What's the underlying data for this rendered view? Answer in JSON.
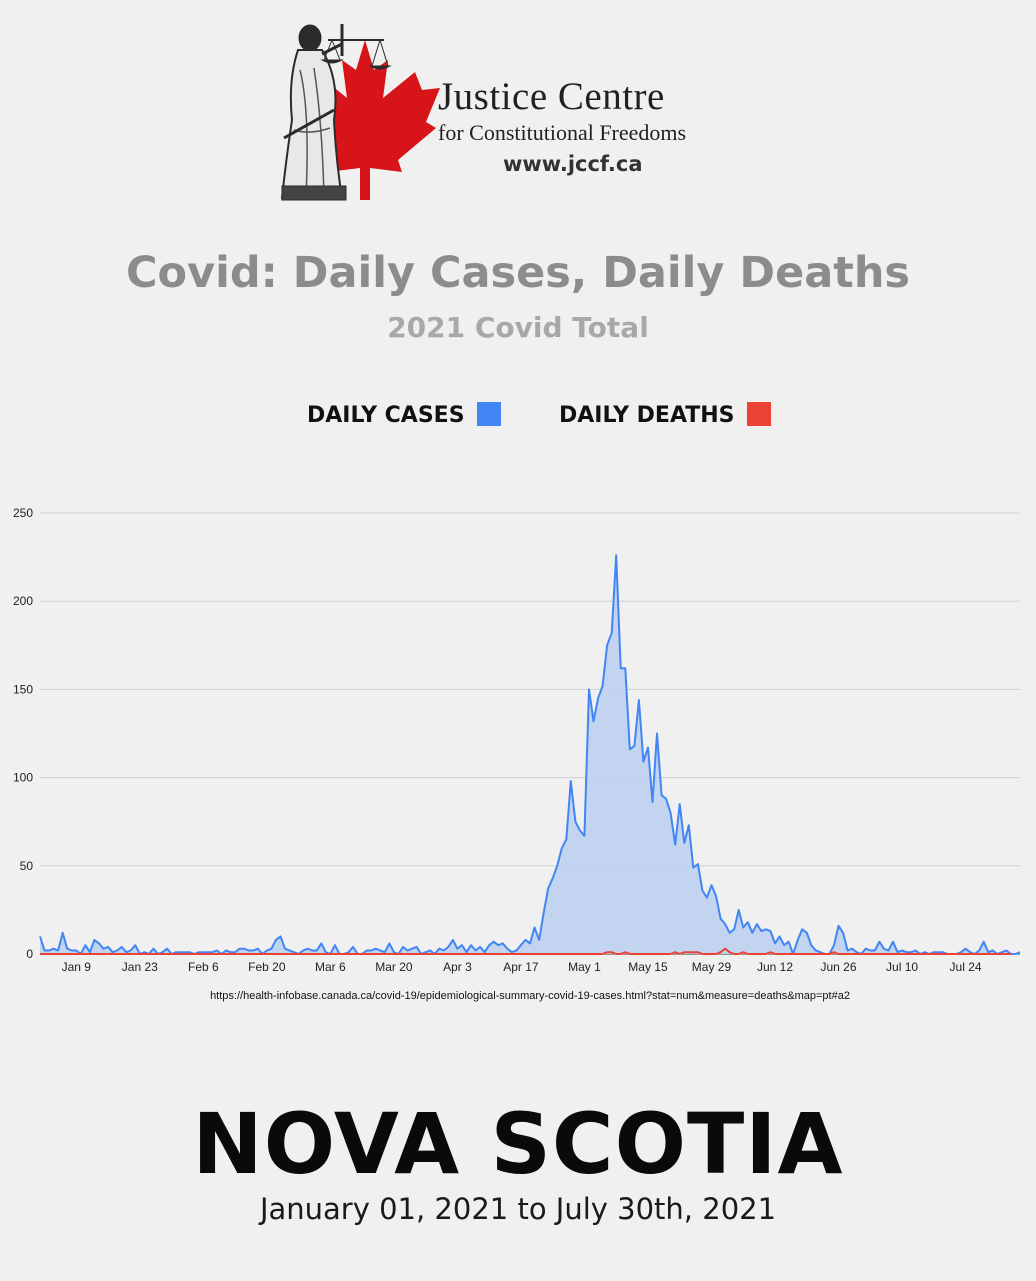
{
  "logo": {
    "name": "Justice Centre",
    "subtitle": "for Constitutional Freedoms",
    "url": "www.jccf.ca",
    "leaf_color": "#d7141a"
  },
  "title": "Covid: Daily Cases, Daily Deaths",
  "subtitle": "2021 Covid Total",
  "legend": {
    "cases_label": "DAILY CASES",
    "deaths_label": "DAILY DEATHS",
    "placement": "top-center"
  },
  "source": "https://health-infobase.canada.ca/covid-19/epidemiological-summary-covid-19-cases.html?stat=num&measure=deaths&map=pt#a2",
  "region": "NOVA SCOTIA",
  "date_range": "January 01, 2021 to July 30th, 2021",
  "chart_data": {
    "type": "area",
    "ylim": [
      0,
      250
    ],
    "yticks": [
      0,
      50,
      100,
      150,
      200,
      250
    ],
    "grid": true,
    "xtick_labels": [
      "Jan 9",
      "Jan 23",
      "Feb 6",
      "Feb 20",
      "Mar 6",
      "Mar 20",
      "Apr 3",
      "Apr 17",
      "May 1",
      "May 15",
      "May 29",
      "Jun 12",
      "Jun 26",
      "Jul 10",
      "Jul 24"
    ],
    "xtick_days": [
      8,
      22,
      36,
      50,
      64,
      78,
      92,
      106,
      120,
      134,
      148,
      162,
      176,
      190,
      204
    ],
    "series": [
      {
        "name": "DAILY CASES",
        "color": "#4285f4",
        "fill": "#bdd0ef",
        "values": [
          10,
          2,
          2,
          3,
          2,
          12,
          3,
          2,
          2,
          0,
          5,
          1,
          8,
          6,
          3,
          4,
          1,
          2,
          4,
          1,
          2,
          5,
          0,
          1,
          0,
          3,
          0,
          1,
          3,
          0,
          1,
          1,
          1,
          1,
          0,
          1,
          1,
          1,
          1,
          2,
          0,
          2,
          1,
          1,
          3,
          3,
          2,
          2,
          3,
          0,
          2,
          3,
          8,
          10,
          3,
          2,
          1,
          0,
          2,
          3,
          2,
          2,
          6,
          1,
          0,
          5,
          0,
          0,
          1,
          4,
          0,
          0,
          2,
          2,
          3,
          2,
          1,
          6,
          1,
          0,
          4,
          2,
          3,
          4,
          0,
          1,
          2,
          0,
          3,
          2,
          4,
          8,
          3,
          5,
          1,
          5,
          2,
          4,
          1,
          5,
          7,
          5,
          6,
          3,
          1,
          2,
          5,
          8,
          6,
          15,
          8,
          23,
          37,
          43,
          50,
          60,
          65,
          98,
          75,
          70,
          67,
          150,
          132,
          145,
          152,
          175,
          182,
          226,
          162,
          162,
          116,
          118,
          144,
          109,
          117,
          86,
          125,
          90,
          88,
          80,
          62,
          85,
          63,
          73,
          49,
          51,
          36,
          32,
          39,
          33,
          20,
          17,
          12,
          14,
          25,
          15,
          18,
          12,
          17,
          13,
          14,
          13,
          6,
          10,
          5,
          7,
          0,
          8,
          14,
          12,
          5,
          2,
          1,
          0,
          0,
          5,
          16,
          12,
          2,
          3,
          1,
          0,
          3,
          2,
          2,
          7,
          3,
          2,
          7,
          1,
          2,
          1,
          1,
          2,
          0,
          1,
          0,
          1,
          1,
          1,
          0,
          0,
          0,
          1,
          3,
          1,
          0,
          2,
          7,
          1,
          2,
          0,
          1,
          2,
          0,
          0,
          1
        ]
      },
      {
        "name": "DAILY DEATHS",
        "color": "#ea4335",
        "values": [
          0,
          0,
          0,
          0,
          0,
          0,
          0,
          0,
          0,
          0,
          0,
          0,
          0,
          0,
          0,
          0,
          0,
          0,
          0,
          0,
          0,
          0,
          0,
          0,
          0,
          0,
          0,
          0,
          0,
          0,
          0,
          0,
          0,
          0,
          0,
          0,
          0,
          0,
          0,
          0,
          0,
          0,
          0,
          0,
          0,
          0,
          0,
          0,
          0,
          0,
          0,
          0,
          0,
          0,
          0,
          0,
          0,
          0,
          0,
          0,
          0,
          0,
          0,
          0,
          0,
          0,
          0,
          0,
          0,
          0,
          0,
          0,
          0,
          0,
          0,
          0,
          0,
          0,
          0,
          0,
          0,
          0,
          0,
          0,
          0,
          0,
          0,
          0,
          0,
          0,
          0,
          0,
          0,
          0,
          0,
          0,
          0,
          0,
          0,
          0,
          0,
          0,
          0,
          0,
          0,
          0,
          0,
          0,
          0,
          0,
          0,
          0,
          0,
          0,
          0,
          0,
          0,
          0,
          0,
          0,
          0,
          0,
          0,
          0,
          0,
          1,
          1,
          0,
          0,
          1,
          0,
          0,
          0,
          0,
          0,
          0,
          0,
          0,
          0,
          0,
          1,
          0,
          1,
          1,
          1,
          1,
          0,
          0,
          0,
          0,
          1,
          3,
          1,
          0,
          0,
          1,
          0,
          0,
          0,
          0,
          0,
          1,
          0,
          0,
          0,
          0,
          0,
          0,
          0,
          0,
          0,
          0,
          0,
          0,
          0,
          1,
          0,
          0,
          0,
          0,
          0,
          0,
          0,
          0,
          0,
          0,
          0,
          0,
          0,
          0,
          0,
          0,
          0,
          0,
          0,
          0,
          0,
          0,
          0,
          0,
          0,
          0,
          0,
          0,
          0,
          0,
          0,
          0,
          0,
          0,
          0,
          0,
          0,
          0,
          0
        ]
      }
    ]
  }
}
